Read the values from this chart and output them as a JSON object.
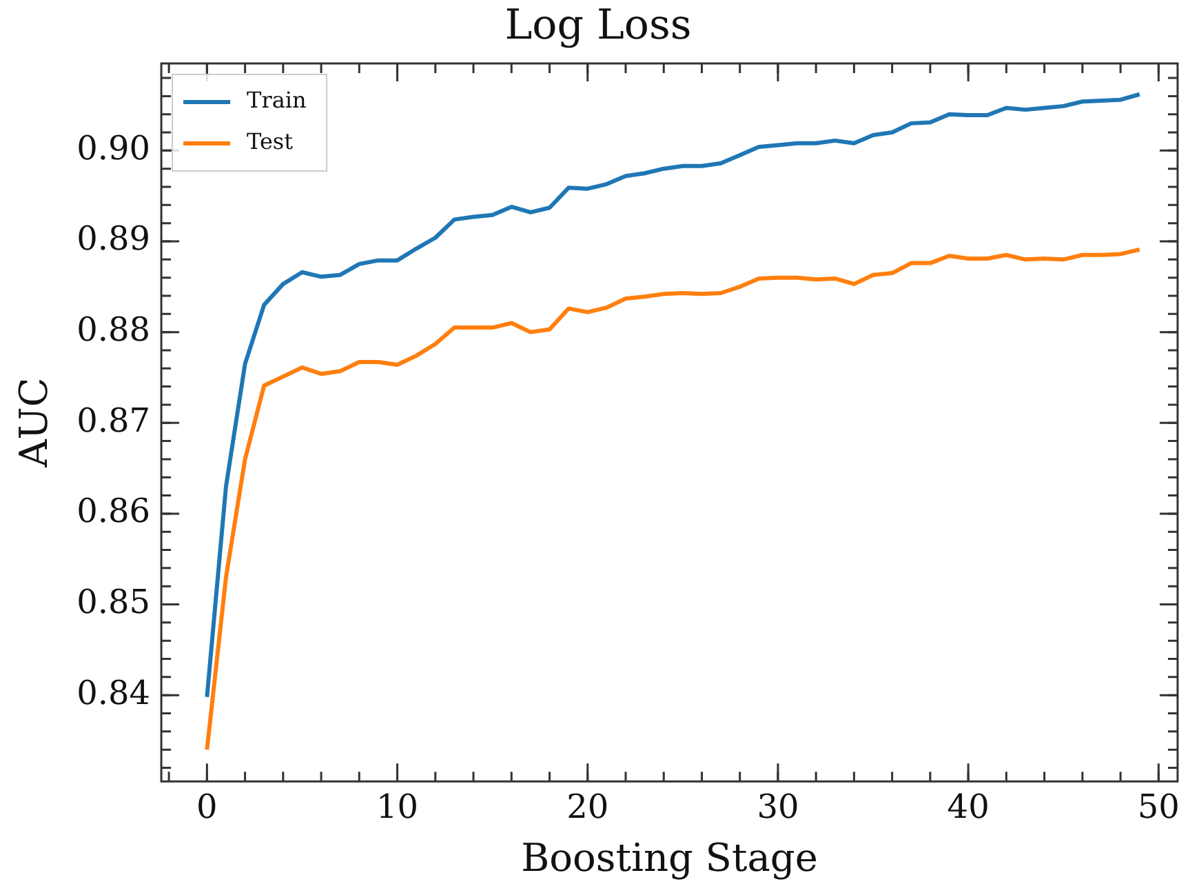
{
  "chart_data": {
    "type": "line",
    "title": "Log Loss",
    "xlabel": "Boosting Stage",
    "ylabel": "AUC",
    "x": [
      0,
      1,
      2,
      3,
      4,
      5,
      6,
      7,
      8,
      9,
      10,
      11,
      12,
      13,
      14,
      15,
      16,
      17,
      18,
      19,
      20,
      21,
      22,
      23,
      24,
      25,
      26,
      27,
      28,
      29,
      30,
      31,
      32,
      33,
      34,
      35,
      36,
      37,
      38,
      39,
      40,
      41,
      42,
      43,
      44,
      45,
      46,
      47,
      48,
      49
    ],
    "series": [
      {
        "name": "Train",
        "color": "#1f77b4",
        "values": [
          0.8398,
          0.863,
          0.8765,
          0.883,
          0.8853,
          0.8866,
          0.8861,
          0.8863,
          0.8875,
          0.8879,
          0.8879,
          0.8892,
          0.8904,
          0.8924,
          0.8927,
          0.8929,
          0.8938,
          0.8932,
          0.8937,
          0.8959,
          0.8958,
          0.8963,
          0.8972,
          0.8975,
          0.898,
          0.8983,
          0.8983,
          0.8986,
          0.8995,
          0.9004,
          0.9006,
          0.9008,
          0.9008,
          0.9011,
          0.9008,
          0.9017,
          0.902,
          0.903,
          0.9031,
          0.904,
          0.9039,
          0.9039,
          0.9047,
          0.9045,
          0.9047,
          0.9049,
          0.9054,
          0.9055,
          0.9056,
          0.9062
        ]
      },
      {
        "name": "Test",
        "color": "#ff7f0e",
        "values": [
          0.834,
          0.853,
          0.866,
          0.8741,
          0.8751,
          0.8761,
          0.8754,
          0.8757,
          0.8767,
          0.8767,
          0.8764,
          0.8774,
          0.8787,
          0.8805,
          0.8805,
          0.8805,
          0.881,
          0.88,
          0.8803,
          0.8826,
          0.8822,
          0.8827,
          0.8837,
          0.8839,
          0.8842,
          0.8843,
          0.8842,
          0.8843,
          0.885,
          0.8859,
          0.886,
          0.886,
          0.8858,
          0.8859,
          0.8853,
          0.8863,
          0.8865,
          0.8876,
          0.8876,
          0.8884,
          0.8881,
          0.8881,
          0.8885,
          0.888,
          0.8881,
          0.888,
          0.8885,
          0.8885,
          0.8886,
          0.8891
        ]
      }
    ],
    "xlim": [
      -2.4,
      51
    ],
    "xticks": [
      0,
      10,
      20,
      30,
      40,
      50
    ],
    "ylim": [
      0.8305,
      0.9096
    ],
    "yticks": [
      {
        "value": 0.84,
        "label": "0.84"
      },
      {
        "value": 0.85,
        "label": "0.85"
      },
      {
        "value": 0.86,
        "label": "0.86"
      },
      {
        "value": 0.87,
        "label": "0.87"
      },
      {
        "value": 0.88,
        "label": "0.88"
      },
      {
        "value": 0.89,
        "label": "0.89"
      },
      {
        "value": 0.9,
        "label": "0.90"
      }
    ],
    "legend": "top left",
    "grid": false,
    "marker": "none",
    "line_style": "solid"
  }
}
